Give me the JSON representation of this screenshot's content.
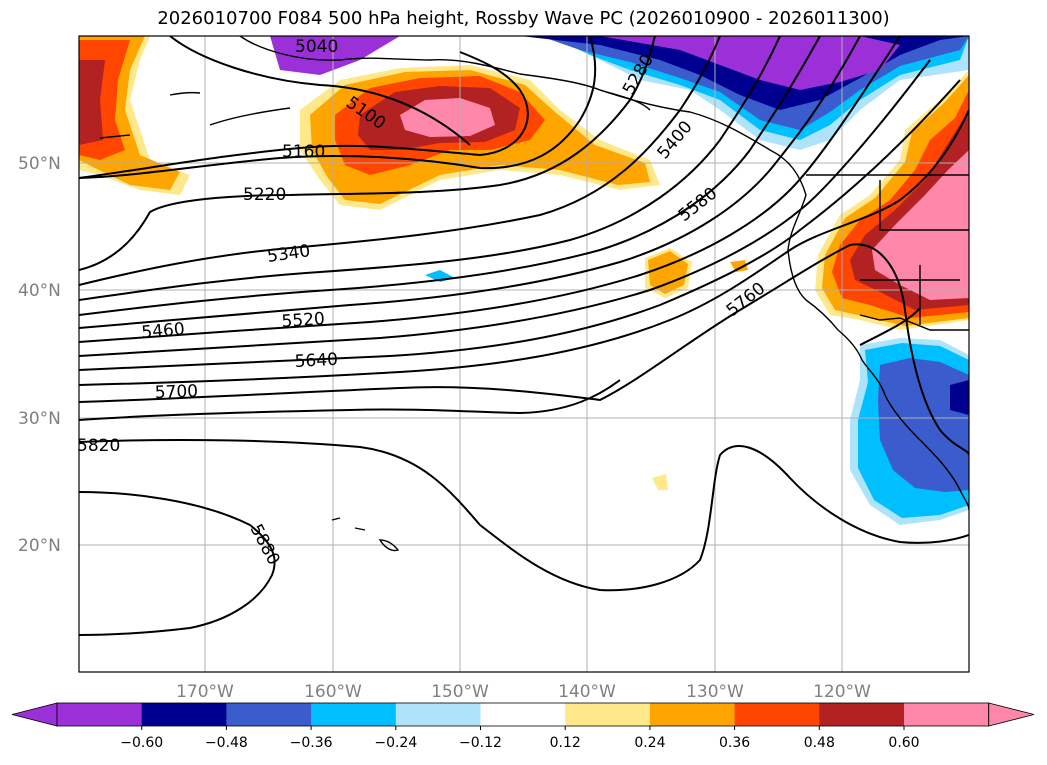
{
  "title": "2026010700 F084 500 hPa height, Rossby Wave PC (2026010900 - 2026011300)",
  "lat_labels": [
    "50°N",
    "40°N",
    "30°N",
    "20°N"
  ],
  "lon_labels": [
    "170°W",
    "160°W",
    "150°W",
    "140°W",
    "130°W",
    "120°W"
  ],
  "contour_labels": [
    "5040",
    "5100",
    "5160",
    "5220",
    "5280",
    "5340",
    "5400",
    "5460",
    "5520",
    "5580",
    "5640",
    "5700",
    "5760",
    "5820",
    "5880"
  ],
  "colorbar": {
    "ticks": [
      "−0.60",
      "−0.48",
      "−0.36",
      "−0.24",
      "−0.12",
      "0.12",
      "0.24",
      "0.36",
      "0.48",
      "0.60"
    ],
    "colors": [
      "#9b30d8",
      "#000090",
      "#3a5ccc",
      "#00bfff",
      "#aee4fb",
      "#ffffff",
      "#ffe88a",
      "#ffa500",
      "#ff4500",
      "#b22222",
      "#ff88aa",
      "#ff88aa"
    ]
  }
}
